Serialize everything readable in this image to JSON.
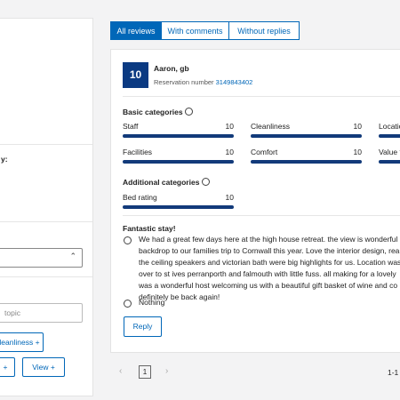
{
  "sidebar": {
    "heading_fragment": "y:",
    "search_placeholder": "topic",
    "topic_button": "leanliness +",
    "add_button": "+",
    "view_button": "View +"
  },
  "tabs": [
    "All reviews",
    "With comments",
    "Without replies"
  ],
  "review": {
    "avatar_score": "10",
    "name": "Aaron, gb",
    "reservation_label": "Reservation number",
    "reservation_number": "3149843402",
    "basic_title": "Basic categories",
    "basic": [
      {
        "name": "Staff",
        "score": "10"
      },
      {
        "name": "Cleanliness",
        "score": "10"
      },
      {
        "name": "Locatio",
        "score": ""
      },
      {
        "name": "Facilities",
        "score": "10"
      },
      {
        "name": "Comfort",
        "score": "10"
      },
      {
        "name": "Value f",
        "score": ""
      }
    ],
    "additional_title": "Additional categories",
    "additional": [
      {
        "name": "Bed rating",
        "score": "10"
      }
    ],
    "title": "Fantastic stay!",
    "positive": [
      "We had a great few days here at the high house retreat. the view is wonderful a",
      "backdrop to our families trip to Cornwall this year. Love the interior design, rea",
      "the ceiling speakers and victorian bath were big highlights for us. Location was",
      "over to st ives perranporth and falmouth with little fuss. all making for a lovely",
      "was a wonderful host welcoming us with a beautiful gift basket of wine and co",
      "definitely be back again!"
    ],
    "negative": "Nothing",
    "reply_button": "Reply"
  },
  "pagination": {
    "prev": "‹",
    "page": "1",
    "next": "›",
    "range": "1-1"
  }
}
